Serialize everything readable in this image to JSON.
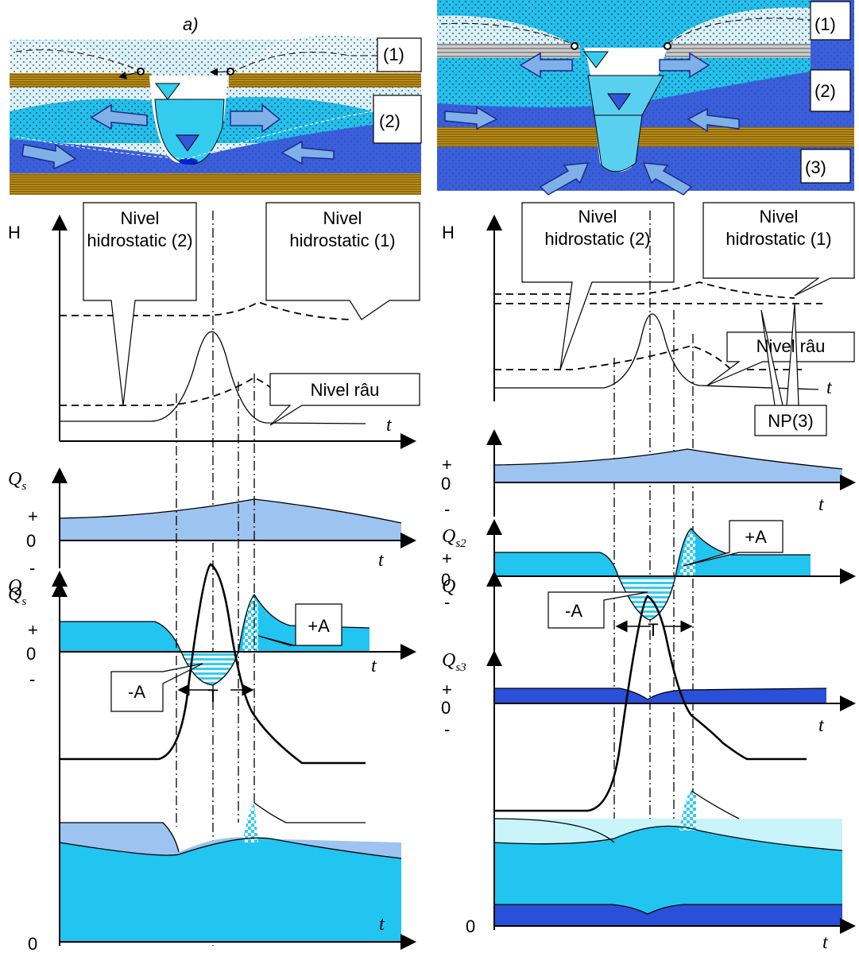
{
  "left": {
    "label": "a)",
    "layers": [
      "(1)",
      "(2)"
    ],
    "level_chart": {
      "axis": "H",
      "time": "t",
      "callouts": [
        [
          "Nivel",
          "hidrostatic (2)"
        ],
        [
          "Nivel",
          "hidrostatic (1)"
        ],
        [
          "Nivel râu"
        ]
      ]
    },
    "qs_chart": {
      "symbol": "Q",
      "subscript": "s",
      "signs": [
        "+",
        "0",
        "-"
      ],
      "time": "t"
    },
    "qs_exchange": {
      "symbol": "Q",
      "subscript": "s",
      "signs": [
        "+",
        "0",
        "-"
      ],
      "time": "t",
      "plus_area": "+A",
      "minus_area": "-A",
      "period": "T"
    },
    "q_chart": {
      "symbol": "Q",
      "zero": "0",
      "time": "t"
    }
  },
  "right": {
    "layers": [
      "(1)",
      "(2)",
      "(3)"
    ],
    "level_chart": {
      "axis": "H",
      "time": "t",
      "callouts": [
        [
          "Nivel",
          "hidrostatic (2)"
        ],
        [
          "Nivel",
          "hidrostatic (1)"
        ],
        [
          "Nivel râu"
        ],
        [
          "NP(3)"
        ]
      ]
    },
    "qs_chart": {
      "signs": [
        "+",
        "0",
        "-"
      ],
      "time": "t"
    },
    "qs2_chart": {
      "symbol": "Q",
      "subscript": "s2",
      "signs": [
        "+",
        "0",
        "-"
      ],
      "plus_area": "+A",
      "minus_area": "-A",
      "period": "T"
    },
    "qs3_chart": {
      "symbol": "Q",
      "subscript": "s3",
      "signs": [
        "+",
        "0",
        "-"
      ],
      "time": "t"
    },
    "q_chart": {
      "symbol": "Q",
      "zero": "0",
      "time": "t"
    }
  }
}
